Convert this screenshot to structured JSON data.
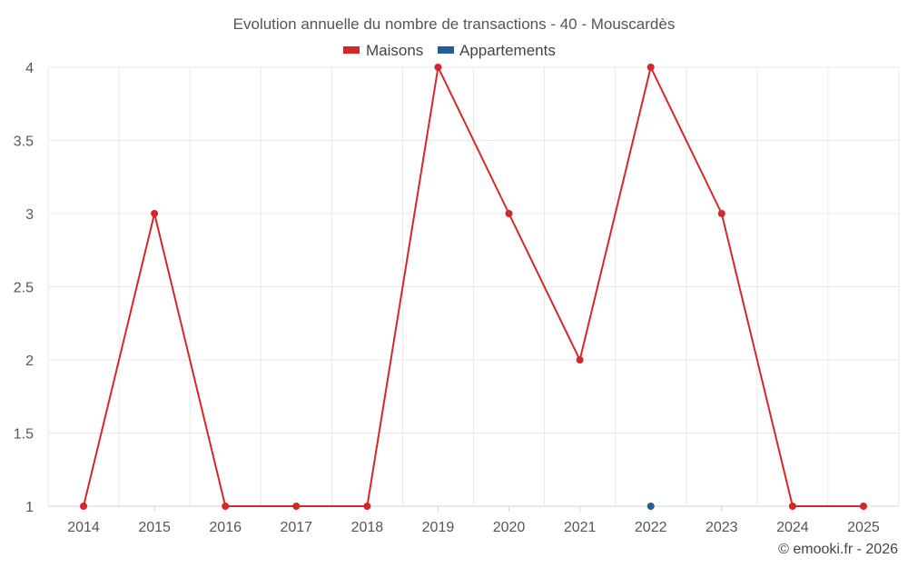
{
  "chart_data": {
    "type": "line",
    "title": "Evolution annuelle du nombre de transactions - 40 - Mouscardès",
    "categories": [
      "2014",
      "2015",
      "2016",
      "2017",
      "2018",
      "2019",
      "2020",
      "2021",
      "2022",
      "2023",
      "2024",
      "2025"
    ],
    "series": [
      {
        "name": "Maisons",
        "color": "#d62728",
        "values": [
          1,
          3,
          1,
          1,
          1,
          4,
          3,
          2,
          4,
          3,
          1,
          1
        ]
      },
      {
        "name": "Appartements",
        "color": "#1f5f99",
        "values": [
          null,
          null,
          null,
          null,
          null,
          null,
          null,
          null,
          1,
          null,
          null,
          null
        ]
      }
    ],
    "ylim": [
      1,
      4
    ],
    "yticks": [
      "1",
      "1.5",
      "2",
      "2.5",
      "3",
      "3.5",
      "4"
    ],
    "xlabel": "",
    "ylabel": "",
    "grid": true,
    "legend": "top-center"
  },
  "footer": "© emooki.fr - 2026"
}
